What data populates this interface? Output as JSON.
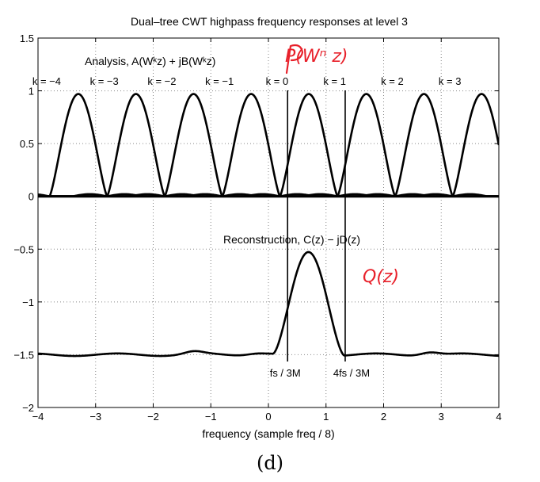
{
  "chart_data": {
    "type": "line",
    "title": "Dual–tree CWT highpass frequency responses at level 3",
    "xlabel": "frequency (sample freq / 8)",
    "ylabel": "",
    "xlim": [
      -4,
      4
    ],
    "ylim": [
      -2,
      1.5
    ],
    "xticks": [
      -4,
      -3,
      -2,
      -1,
      0,
      1,
      2,
      3,
      4
    ],
    "yticks": [
      -2,
      -1.5,
      -1,
      -0.5,
      0,
      0.5,
      1,
      1.5
    ],
    "xtick_labels": [
      "−4",
      "−3",
      "−2",
      "−1",
      "0",
      "1",
      "2",
      "3",
      "4"
    ],
    "ytick_labels": [
      "−2",
      "−1.5",
      "−1",
      "−0.5",
      "0",
      "0.5",
      "1",
      "1.5"
    ],
    "grid": true,
    "analysis": {
      "label": "Analysis, A(Wᵏz) + jB(Wᵏz)",
      "peak": 0.97,
      "k_values": [
        -4,
        -3,
        -2,
        -1,
        0,
        1,
        2,
        3
      ],
      "k_labels": [
        "k = −4",
        "k = −3",
        "k = −2",
        "k = −1",
        "k = 0",
        "k = 1",
        "k = 2",
        "k = 3"
      ],
      "peak_x": [
        -3.3,
        -2.3,
        -1.3,
        -0.3,
        0.7,
        1.7,
        2.7,
        3.7
      ]
    },
    "reconstruction": {
      "label": "Reconstruction, C(z) − jD(z)",
      "baseline": -1.5,
      "peak_x": 0.7,
      "peak_y": -0.53
    },
    "markers": [
      {
        "x": 0.333,
        "label": "fs / 3M"
      },
      {
        "x": 1.333,
        "label": "4fs / 3M"
      }
    ]
  },
  "annotations": {
    "handwritten_top": "P(Wⁿ z)",
    "handwritten_right": "Q(z)"
  },
  "caption": "(d)"
}
